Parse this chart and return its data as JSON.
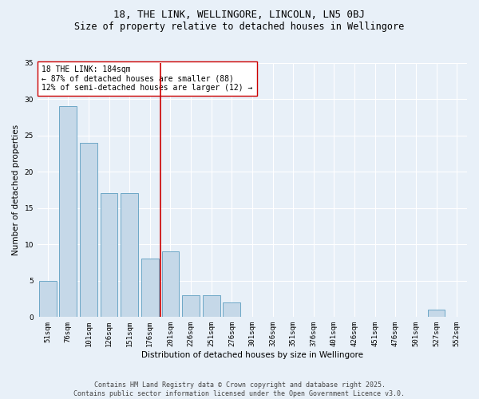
{
  "title": "18, THE LINK, WELLINGORE, LINCOLN, LN5 0BJ",
  "subtitle": "Size of property relative to detached houses in Wellingore",
  "xlabel": "Distribution of detached houses by size in Wellingore",
  "ylabel": "Number of detached properties",
  "categories": [
    "51sqm",
    "76sqm",
    "101sqm",
    "126sqm",
    "151sqm",
    "176sqm",
    "201sqm",
    "226sqm",
    "251sqm",
    "276sqm",
    "301sqm",
    "326sqm",
    "351sqm",
    "376sqm",
    "401sqm",
    "426sqm",
    "451sqm",
    "476sqm",
    "501sqm",
    "527sqm",
    "552sqm"
  ],
  "values": [
    5,
    29,
    24,
    17,
    17,
    8,
    9,
    3,
    3,
    2,
    0,
    0,
    0,
    0,
    0,
    0,
    0,
    0,
    0,
    1,
    0
  ],
  "bar_color": "#c5d8e8",
  "bar_edge_color": "#5b9dc0",
  "vline_pos": 6.0,
  "vline_color": "#cc0000",
  "annotation_text": "18 THE LINK: 184sqm\n← 87% of detached houses are smaller (88)\n12% of semi-detached houses are larger (12) →",
  "annotation_box_color": "#ffffff",
  "annotation_box_edge_color": "#cc0000",
  "ylim": [
    0,
    35
  ],
  "yticks": [
    0,
    5,
    10,
    15,
    20,
    25,
    30,
    35
  ],
  "background_color": "#e8f0f8",
  "grid_color": "#ffffff",
  "footer_text": "Contains HM Land Registry data © Crown copyright and database right 2025.\nContains public sector information licensed under the Open Government Licence v3.0.",
  "title_fontsize": 9,
  "subtitle_fontsize": 8.5,
  "axis_label_fontsize": 7.5,
  "tick_fontsize": 6.5,
  "annotation_fontsize": 7,
  "footer_fontsize": 6
}
